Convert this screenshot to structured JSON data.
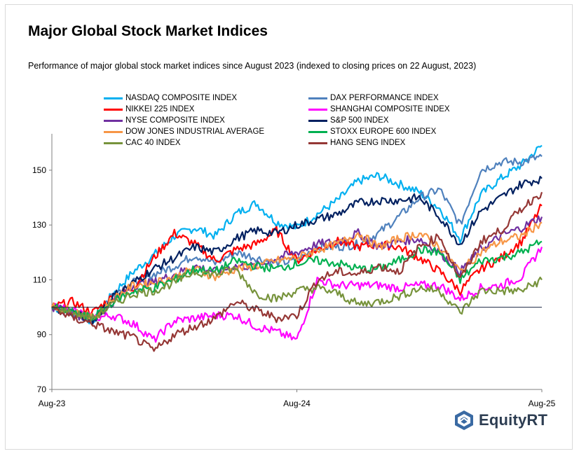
{
  "title": "Major Global Stock Market Indices",
  "subtitle": "Performance of major global stock market indices since August 2023 (indexed to closing prices on 22 August, 2023)",
  "logo": {
    "text": "EquityRT",
    "icon": "equityrt-logo-icon",
    "color": "#2d3d52"
  },
  "chart_data": {
    "type": "line",
    "title": "Major Global Stock Market Indices",
    "subtitle": "Performance of major global stock market indices since August 2023 (indexed to closing prices on 22 August, 2023)",
    "xlabel": "",
    "ylabel": "",
    "x_ticks": [
      "Aug-23",
      "Aug-24",
      "Aug-25"
    ],
    "x_range": [
      "Aug-23",
      "Aug-25"
    ],
    "y_ticks": [
      70,
      90,
      110,
      130,
      150
    ],
    "ylim": [
      70,
      162
    ],
    "baseline": 100,
    "grid": false,
    "legend_position": "top",
    "x": [
      "2023-08-22",
      "2023-09-22",
      "2023-10-22",
      "2023-11-22",
      "2023-12-22",
      "2024-01-22",
      "2024-02-22",
      "2024-03-22",
      "2024-04-22",
      "2024-05-22",
      "2024-06-22",
      "2024-07-22",
      "2024-08-22",
      "2024-09-22",
      "2024-10-22",
      "2024-11-22",
      "2024-12-22",
      "2025-01-22",
      "2025-02-22",
      "2025-03-22",
      "2025-04-22",
      "2025-05-22",
      "2025-06-22",
      "2025-07-22",
      "2025-08-22"
    ],
    "series": [
      {
        "name": "NASDAQ COMPOSITE INDEX",
        "color": "#00b0f0",
        "values": [
          100,
          98,
          95,
          105,
          113,
          119,
          126,
          129,
          126,
          134,
          138,
          131,
          129,
          134,
          139,
          146,
          148,
          145,
          142,
          136,
          125,
          141,
          147,
          152,
          159
        ]
      },
      {
        "name": "DAX PERFORMANCE INDEX",
        "color": "#4f81bd",
        "values": [
          100,
          98,
          96,
          105,
          109,
          112,
          115,
          119,
          116,
          120,
          118,
          116,
          117,
          122,
          122,
          123,
          127,
          133,
          140,
          143,
          130,
          150,
          153,
          153,
          155
        ]
      },
      {
        "name": "NIKKEI 225 INDEX",
        "color": "#ff0000",
        "values": [
          100,
          102,
          98,
          104,
          107,
          118,
          127,
          123,
          117,
          121,
          123,
          128,
          117,
          121,
          124,
          122,
          123,
          122,
          118,
          113,
          106,
          114,
          118,
          124,
          137
        ]
      },
      {
        "name": "SHANGHAI COMPOSITE INDEX",
        "color": "#ff00ff",
        "values": [
          100,
          99,
          96,
          97,
          94,
          88,
          95,
          96,
          97,
          97,
          93,
          91,
          88,
          110,
          108,
          108,
          108,
          107,
          108,
          108,
          103,
          107,
          108,
          111,
          122
        ]
      },
      {
        "name": "NYSE COMPOSITE INDEX",
        "color": "#7030a0",
        "values": [
          100,
          98,
          95,
          102,
          108,
          109,
          112,
          115,
          113,
          115,
          115,
          118,
          120,
          123,
          124,
          127,
          122,
          124,
          125,
          120,
          113,
          121,
          126,
          129,
          133
        ]
      },
      {
        "name": "S&P 500 INDEX",
        "color": "#002060",
        "values": [
          100,
          98,
          95,
          104,
          109,
          114,
          118,
          122,
          120,
          125,
          128,
          127,
          130,
          132,
          134,
          138,
          139,
          139,
          140,
          133,
          123,
          135,
          140,
          145,
          147
        ]
      },
      {
        "name": "DOW JONES INDUSTRIAL AVERAGE",
        "color": "#f79646",
        "values": [
          100,
          99,
          96,
          103,
          108,
          109,
          111,
          114,
          111,
          114,
          115,
          117,
          118,
          121,
          123,
          127,
          122,
          125,
          127,
          122,
          113,
          120,
          124,
          126,
          131
        ]
      },
      {
        "name": "STOXX EUROPE 600 INDEX",
        "color": "#00b050",
        "values": [
          100,
          98,
          96,
          102,
          106,
          107,
          110,
          114,
          113,
          117,
          115,
          114,
          116,
          117,
          116,
          114,
          114,
          117,
          121,
          120,
          110,
          117,
          118,
          120,
          124
        ]
      },
      {
        "name": "CAC 40 INDEX",
        "color": "#77933c",
        "values": [
          100,
          98,
          96,
          101,
          105,
          106,
          109,
          113,
          112,
          114,
          105,
          103,
          106,
          107,
          105,
          101,
          102,
          104,
          107,
          106,
          98,
          106,
          106,
          106,
          110
        ]
      },
      {
        "name": "HANG SENG INDEX",
        "color": "#953735",
        "values": [
          100,
          96,
          94,
          91,
          89,
          84,
          90,
          93,
          96,
          102,
          99,
          96,
          97,
          110,
          113,
          112,
          115,
          113,
          122,
          126,
          110,
          124,
          128,
          136,
          142
        ]
      }
    ]
  }
}
